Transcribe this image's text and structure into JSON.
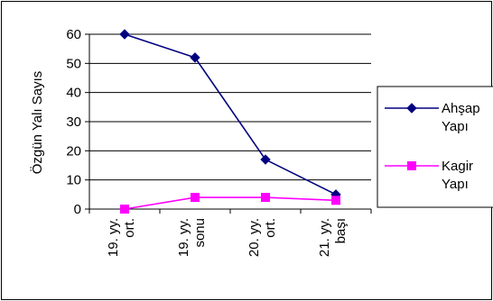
{
  "chart_data": {
    "type": "line",
    "categories": [
      "19. yy. ort.",
      "19. yy. sonu",
      "20. yy. ort.",
      "21. yy. başı"
    ],
    "category_lines": [
      [
        "19. yy.",
        "ort."
      ],
      [
        "19. yy.",
        "sonu"
      ],
      [
        "20. yy.",
        "ort."
      ],
      [
        "21. yy.",
        "başı"
      ]
    ],
    "series": [
      {
        "name": "Ahşap Yapı",
        "name_lines": [
          "Ahşap",
          "Yapı"
        ],
        "values": [
          60,
          52,
          17,
          5
        ],
        "color": "#000080",
        "marker": "diamond"
      },
      {
        "name": "Kagir Yapı",
        "name_lines": [
          "Kagir",
          "Yapı"
        ],
        "values": [
          0,
          4,
          4,
          3
        ],
        "color": "#ff00ff",
        "marker": "square"
      }
    ],
    "ylabel": "Özgün Yalı Sayıs",
    "yticks": [
      0,
      10,
      20,
      30,
      40,
      50,
      60
    ],
    "ylim": [
      0,
      60
    ],
    "grid": true,
    "legend": "right"
  }
}
